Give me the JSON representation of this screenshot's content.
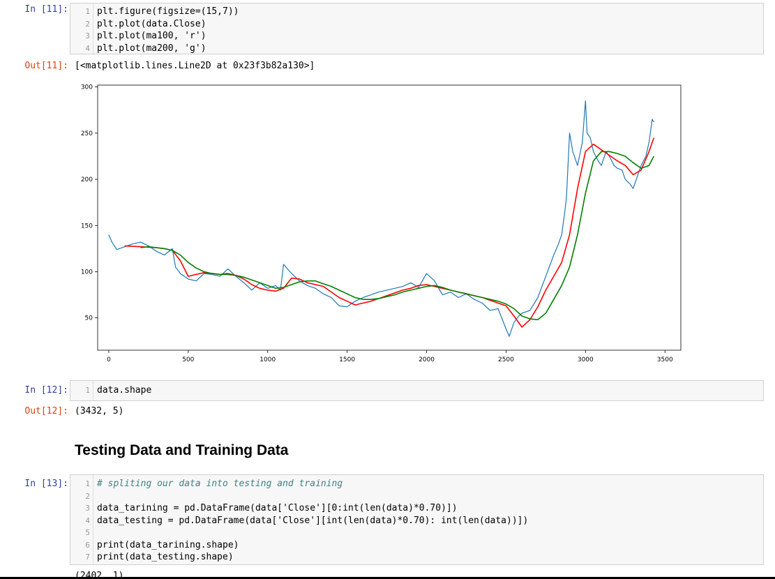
{
  "cell11": {
    "prompt": "In [11]:",
    "lines": [
      {
        "n": "1",
        "code": "plt.figure(figsize=(15,7))"
      },
      {
        "n": "2",
        "code": "plt.plot(data.Close)"
      },
      {
        "n": "3",
        "code": "plt.plot(ma100, 'r')"
      },
      {
        "n": "4",
        "code": "plt.plot(ma200, 'g')"
      }
    ],
    "out_prompt": "Out[11]:",
    "output": "[<matplotlib.lines.Line2D at 0x23f3b82a130>]"
  },
  "cell12": {
    "prompt": "In [12]:",
    "lines": [
      {
        "n": "1",
        "code": "data.shape"
      }
    ],
    "out_prompt": "Out[12]:",
    "output": "(3432, 5)"
  },
  "heading": "Testing Data and Training Data",
  "cell13": {
    "prompt": "In [13]:",
    "lines": [
      {
        "n": "1",
        "code": "# spliting our data into testing and training"
      },
      {
        "n": "2",
        "code": ""
      },
      {
        "n": "3",
        "code": "data_tarining = pd.DataFrame(data['Close'][0:int(len(data)*0.70)])"
      },
      {
        "n": "4",
        "code": "data_testing = pd.DataFrame(data['Close'][int(len(data)*0.70): int(len(data))])"
      },
      {
        "n": "5",
        "code": ""
      },
      {
        "n": "6",
        "code": "print(data_tarining.shape)"
      },
      {
        "n": "7",
        "code": "print(data_testing.shape)"
      }
    ],
    "output_partial": "(2402, 1)"
  },
  "chart_data": {
    "type": "line",
    "xlim": [
      -70,
      3600
    ],
    "ylim": [
      15,
      302
    ],
    "xticks": [
      0,
      500,
      1000,
      1500,
      2000,
      2500,
      3000,
      3500
    ],
    "yticks": [
      50,
      100,
      150,
      200,
      250,
      300
    ],
    "grid": false,
    "series": [
      {
        "color": "#1f77b4",
        "x": [
          0,
          20,
          50,
          100,
          150,
          200,
          250,
          300,
          350,
          400,
          420,
          450,
          500,
          550,
          600,
          650,
          700,
          750,
          800,
          850,
          900,
          950,
          1000,
          1050,
          1080,
          1100,
          1150,
          1200,
          1250,
          1300,
          1350,
          1400,
          1450,
          1500,
          1550,
          1600,
          1650,
          1700,
          1750,
          1800,
          1850,
          1900,
          1950,
          2000,
          2050,
          2100,
          2150,
          2200,
          2250,
          2300,
          2350,
          2400,
          2450,
          2500,
          2520,
          2550,
          2580,
          2600,
          2650,
          2700,
          2750,
          2800,
          2830,
          2850,
          2870,
          2880,
          2900,
          2920,
          2950,
          2980,
          3000,
          3010,
          3030,
          3050,
          3080,
          3100,
          3130,
          3150,
          3180,
          3200,
          3230,
          3250,
          3280,
          3300,
          3330,
          3350,
          3380,
          3400,
          3420,
          3430
        ],
        "y": [
          140,
          132,
          124,
          127,
          130,
          132,
          128,
          122,
          118,
          125,
          105,
          98,
          92,
          90,
          98,
          97,
          95,
          103,
          95,
          88,
          80,
          88,
          82,
          85,
          80,
          108,
          98,
          90,
          85,
          82,
          76,
          72,
          63,
          62,
          68,
          72,
          75,
          78,
          80,
          82,
          84,
          88,
          83,
          98,
          90,
          75,
          78,
          72,
          76,
          70,
          66,
          58,
          60,
          38,
          30,
          45,
          52,
          55,
          58,
          72,
          95,
          118,
          130,
          140,
          165,
          180,
          250,
          230,
          215,
          240,
          285,
          250,
          245,
          230,
          220,
          215,
          230,
          225,
          215,
          212,
          210,
          200,
          195,
          190,
          205,
          215,
          225,
          240,
          265,
          262
        ]
      },
      {
        "color": "#ff0000",
        "x": [
          100,
          200,
          300,
          350,
          400,
          450,
          500,
          550,
          600,
          650,
          700,
          750,
          800,
          850,
          900,
          950,
          1000,
          1050,
          1100,
          1150,
          1200,
          1250,
          1300,
          1350,
          1400,
          1450,
          1500,
          1550,
          1600,
          1650,
          1700,
          1750,
          1800,
          1850,
          1900,
          1950,
          2000,
          2050,
          2100,
          2150,
          2200,
          2250,
          2300,
          2350,
          2400,
          2450,
          2500,
          2550,
          2600,
          2650,
          2700,
          2750,
          2800,
          2850,
          2900,
          2950,
          3000,
          3050,
          3100,
          3150,
          3200,
          3250,
          3300,
          3350,
          3400,
          3430
        ],
        "y": [
          128,
          127,
          126,
          125,
          123,
          112,
          95,
          97,
          99,
          98,
          97,
          98,
          96,
          92,
          86,
          82,
          80,
          79,
          82,
          93,
          92,
          88,
          86,
          84,
          78,
          72,
          68,
          64,
          66,
          68,
          71,
          74,
          77,
          80,
          82,
          85,
          86,
          84,
          82,
          80,
          78,
          76,
          74,
          72,
          69,
          66,
          63,
          52,
          40,
          48,
          62,
          80,
          95,
          110,
          140,
          190,
          230,
          238,
          232,
          226,
          220,
          215,
          205,
          210,
          230,
          245
        ]
      },
      {
        "color": "#008000",
        "x": [
          200,
          250,
          300,
          350,
          400,
          450,
          500,
          550,
          600,
          650,
          700,
          750,
          800,
          850,
          900,
          950,
          1000,
          1050,
          1100,
          1150,
          1200,
          1250,
          1300,
          1350,
          1400,
          1450,
          1500,
          1550,
          1600,
          1650,
          1700,
          1750,
          1800,
          1850,
          1900,
          1950,
          2000,
          2050,
          2100,
          2150,
          2200,
          2250,
          2300,
          2350,
          2400,
          2450,
          2500,
          2550,
          2600,
          2650,
          2700,
          2750,
          2800,
          2850,
          2900,
          2950,
          3000,
          3050,
          3100,
          3150,
          3200,
          3250,
          3300,
          3350,
          3400,
          3430
        ],
        "y": [
          126,
          127,
          126,
          125,
          123,
          118,
          110,
          104,
          100,
          98,
          97,
          97,
          96,
          94,
          91,
          88,
          85,
          82,
          83,
          86,
          89,
          90,
          90,
          87,
          84,
          80,
          76,
          72,
          70,
          70,
          71,
          73,
          75,
          78,
          80,
          82,
          84,
          85,
          83,
          80,
          78,
          76,
          74,
          72,
          70,
          68,
          65,
          60,
          52,
          49,
          48,
          55,
          70,
          85,
          105,
          140,
          185,
          220,
          230,
          230,
          228,
          225,
          218,
          212,
          215,
          225
        ]
      }
    ]
  }
}
